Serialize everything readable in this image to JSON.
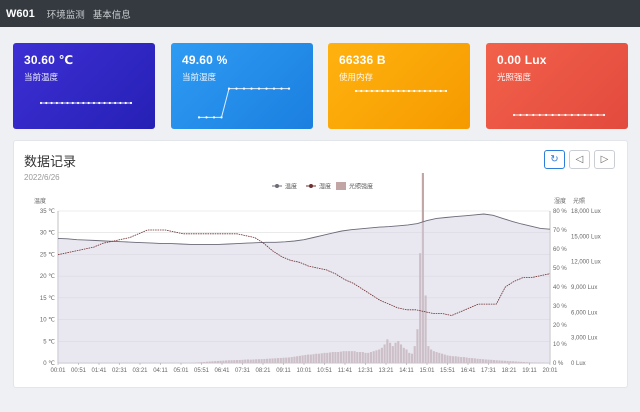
{
  "header": {
    "brand": "W601",
    "nav": [
      "环境监测",
      "基本信息"
    ]
  },
  "cards": [
    {
      "value": "30.60 ℃",
      "label": "当前温度",
      "spark": [
        0.5,
        0.5,
        0.5,
        0.5,
        0.5,
        0.5,
        0.5,
        0.5,
        0.5,
        0.5,
        0.5,
        0.5,
        0.5,
        0.5,
        0.5,
        0.5,
        0.5,
        0.5
      ]
    },
    {
      "value": "49.60 %",
      "label": "当前湿度",
      "spark": [
        0.1,
        0.1,
        0.1,
        0.1,
        0.9,
        0.9,
        0.9,
        0.9,
        0.9,
        0.9,
        0.9,
        0.9,
        0.9
      ]
    },
    {
      "value": "66336 B",
      "label": "使用内存",
      "spark": [
        0.5,
        0.5,
        0.5,
        0.5,
        0.5,
        0.5,
        0.5,
        0.5,
        0.5,
        0.5,
        0.5,
        0.5,
        0.5,
        0.5,
        0.5,
        0.5,
        0.5,
        0.5
      ]
    },
    {
      "value": "0.00 Lux",
      "label": "光照强度",
      "spark": [
        0.5,
        0.5,
        0.5,
        0.5,
        0.5,
        0.5,
        0.5,
        0.5,
        0.5,
        0.5,
        0.5,
        0.5,
        0.5,
        0.5,
        0.5
      ]
    }
  ],
  "panel": {
    "title": "数据记录",
    "date": "2022/6/26",
    "buttons": {
      "refresh": "↻",
      "prev": "◁",
      "next": "▷"
    }
  },
  "colors": {
    "temperature": "#6b6b78",
    "humidity": "#6e2f2f",
    "light_bar": "#c2a5a5",
    "temp_area": "#d7d6e3"
  },
  "chart_data": {
    "type": "line",
    "legend": [
      "温度",
      "湿度",
      "光照强度"
    ],
    "y_left": {
      "label": "温度",
      "ticks": [
        "35 ℃",
        "30 ℃",
        "25 ℃",
        "20 ℃",
        "15 ℃",
        "10 ℃",
        "5 ℃",
        "0 ℃"
      ],
      "range": [
        0,
        35
      ]
    },
    "y_mid": {
      "label": "湿度",
      "ticks": [
        "80 %",
        "70 %",
        "60 %",
        "50 %",
        "40 %",
        "30 %",
        "20 %",
        "10 %",
        "0 %"
      ],
      "range": [
        0,
        80
      ]
    },
    "y_right": {
      "label": "光照",
      "ticks": [
        "18,000 Lux",
        "15,000 Lux",
        "12,000 Lux",
        "9,000 Lux",
        "6,000 Lux",
        "3,000 Lux",
        "0 Lux"
      ],
      "range": [
        0,
        18000
      ]
    },
    "x_ticks": [
      "00:01",
      "00:51",
      "01:41",
      "02:31",
      "03:21",
      "04:11",
      "05:01",
      "05:51",
      "06:41",
      "07:31",
      "08:21",
      "09:11",
      "10:01",
      "10:51",
      "11:41",
      "12:31",
      "13:21",
      "14:11",
      "15:01",
      "15:51",
      "16:41",
      "17:31",
      "18:21",
      "19:11",
      "20:01"
    ],
    "temperature": [
      28.7,
      28.6,
      28.4,
      28.3,
      28.2,
      28.1,
      28.0,
      27.9,
      27.8,
      27.7,
      27.6,
      27.5,
      27.5,
      27.4,
      27.3,
      27.3,
      27.3,
      27.3,
      27.4,
      27.5,
      27.6,
      27.7,
      27.8,
      27.8,
      27.9,
      28.1,
      28.4,
      28.9,
      29.4,
      29.9,
      30.4,
      30.7,
      30.9,
      31.1,
      31.3,
      31.4,
      31.6,
      31.8,
      32.1,
      32.8,
      33.3,
      33.5,
      33.7,
      33.9,
      34.1,
      34.3,
      34.0,
      33.3,
      32.6,
      32.0,
      31.5,
      31.0,
      30.8
    ],
    "humidity": [
      57,
      58,
      59,
      60,
      61,
      63,
      64,
      65,
      66,
      68,
      70,
      70,
      70,
      69,
      68,
      68,
      68,
      68,
      68,
      68,
      68,
      67,
      66,
      63,
      59,
      56,
      54,
      53,
      51,
      50,
      49,
      47,
      44,
      42,
      39,
      36,
      33,
      31,
      29,
      28,
      28,
      27,
      26,
      26,
      25,
      27,
      29,
      31,
      31,
      31,
      40,
      43,
      45,
      45,
      46,
      47
    ],
    "light": [
      0,
      0,
      0,
      0,
      0,
      0,
      0,
      0,
      0,
      0,
      0,
      0,
      0,
      0,
      0,
      0,
      0,
      0,
      0,
      0,
      0,
      0,
      0,
      0,
      0,
      0,
      0,
      0,
      0,
      0,
      0,
      0,
      0,
      0,
      0,
      0,
      0,
      0,
      0,
      0,
      0,
      0,
      0,
      0,
      0,
      0,
      0,
      0,
      0,
      0,
      50,
      80,
      100,
      120,
      150,
      180,
      200,
      220,
      240,
      260,
      280,
      300,
      320,
      330,
      340,
      350,
      360,
      380,
      400,
      420,
      400,
      420,
      440,
      450,
      460,
      480,
      500,
      520,
      540,
      560,
      580,
      600,
      620,
      640,
      660,
      700,
      750,
      800,
      850,
      900,
      950,
      1000,
      1000,
      1050,
      1100,
      1100,
      1150,
      1200,
      1200,
      1250,
      1300,
      1300,
      1300,
      1350,
      1400,
      1400,
      1400,
      1400,
      1400,
      1300,
      1300,
      1300,
      1200,
      1200,
      1300,
      1400,
      1500,
      1600,
      1800,
      2200,
      2800,
      2400,
      2000,
      2400,
      2600,
      2200,
      1800,
      1600,
      1200,
      1100,
      2000,
      4000,
      13000,
      22500,
      8000,
      2000,
      1600,
      1400,
      1300,
      1200,
      1100,
      1000,
      900,
      850,
      800,
      800,
      750,
      700,
      700,
      650,
      600,
      580,
      550,
      500,
      480,
      450,
      420,
      400,
      380,
      350,
      320,
      300,
      280,
      260,
      240,
      220,
      200,
      180,
      160,
      140,
      120,
      100,
      80,
      60,
      50,
      40,
      30,
      20,
      10,
      5
    ]
  }
}
